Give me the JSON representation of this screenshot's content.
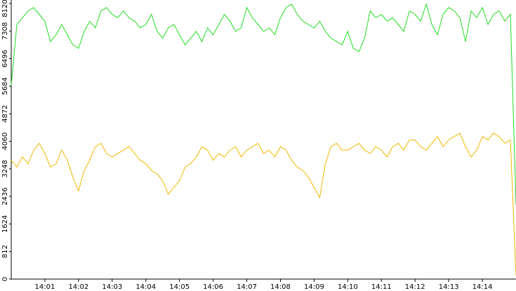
{
  "chart_data": {
    "type": "line",
    "xlim": [
      0,
      90
    ],
    "xticks": [
      {
        "value": 6,
        "label": "14:01"
      },
      {
        "value": 12,
        "label": "14:02"
      },
      {
        "value": 18,
        "label": "14:03"
      },
      {
        "value": 24,
        "label": "14:04"
      },
      {
        "value": 30,
        "label": "14:05"
      },
      {
        "value": 36,
        "label": "14:06"
      },
      {
        "value": 42,
        "label": "14:07"
      },
      {
        "value": 48,
        "label": "14:08"
      },
      {
        "value": 54,
        "label": "14:09"
      },
      {
        "value": 60,
        "label": "14:10"
      },
      {
        "value": 66,
        "label": "14:11"
      },
      {
        "value": 72,
        "label": "14:12"
      },
      {
        "value": 78,
        "label": "14:13"
      },
      {
        "value": 84,
        "label": "14:14"
      }
    ],
    "ylim": [
      0,
      8120
    ],
    "yticks": [
      0,
      812,
      1624,
      2436,
      3248,
      4060,
      4872,
      5684,
      6496,
      7308,
      8120
    ],
    "series": [
      {
        "color": "#22dd22",
        "values": [
          5700,
          7500,
          7700,
          7900,
          8000,
          7800,
          7600,
          7000,
          7200,
          7500,
          7200,
          6900,
          6800,
          7300,
          7600,
          7400,
          7900,
          8000,
          7800,
          7700,
          7900,
          7700,
          7600,
          7400,
          7500,
          7800,
          7300,
          7100,
          7400,
          7500,
          7200,
          6900,
          7100,
          7300,
          7000,
          7400,
          7200,
          7500,
          7800,
          7600,
          7300,
          7400,
          8000,
          7700,
          7500,
          7300,
          7400,
          7200,
          7700,
          8000,
          8100,
          7800,
          7600,
          7500,
          7400,
          7600,
          7300,
          7100,
          7000,
          6900,
          7300,
          6800,
          6700,
          7100,
          7900,
          7700,
          7800,
          7600,
          7700,
          7500,
          7300,
          7900,
          7800,
          7600,
          8100,
          7500,
          7200,
          7800,
          8000,
          7900,
          7700,
          7000,
          7900,
          7700,
          8000,
          7500,
          7800,
          7900,
          7600,
          7800,
          2200
        ]
      },
      {
        "color": "#f0b800",
        "values": [
          3500,
          3300,
          3600,
          3400,
          3800,
          4000,
          3700,
          3300,
          3400,
          3800,
          3500,
          3000,
          2600,
          3200,
          3500,
          3900,
          4000,
          3700,
          3600,
          3700,
          3800,
          3900,
          3700,
          3500,
          3400,
          3200,
          3100,
          2900,
          2500,
          2700,
          2900,
          3300,
          3400,
          3600,
          3900,
          3800,
          3500,
          3700,
          3600,
          3800,
          3900,
          3600,
          3800,
          3900,
          4000,
          3700,
          3800,
          3600,
          3900,
          3800,
          3500,
          3300,
          3200,
          3000,
          2700,
          2400,
          3400,
          3900,
          4000,
          3800,
          3800,
          3900,
          4000,
          3800,
          3700,
          3900,
          3800,
          3600,
          3900,
          4000,
          3800,
          4100,
          4100,
          3900,
          3800,
          4000,
          4200,
          3900,
          4100,
          4200,
          4300,
          3900,
          3600,
          3800,
          4200,
          4100,
          4300,
          4200,
          4000,
          4100,
          100
        ]
      }
    ]
  }
}
